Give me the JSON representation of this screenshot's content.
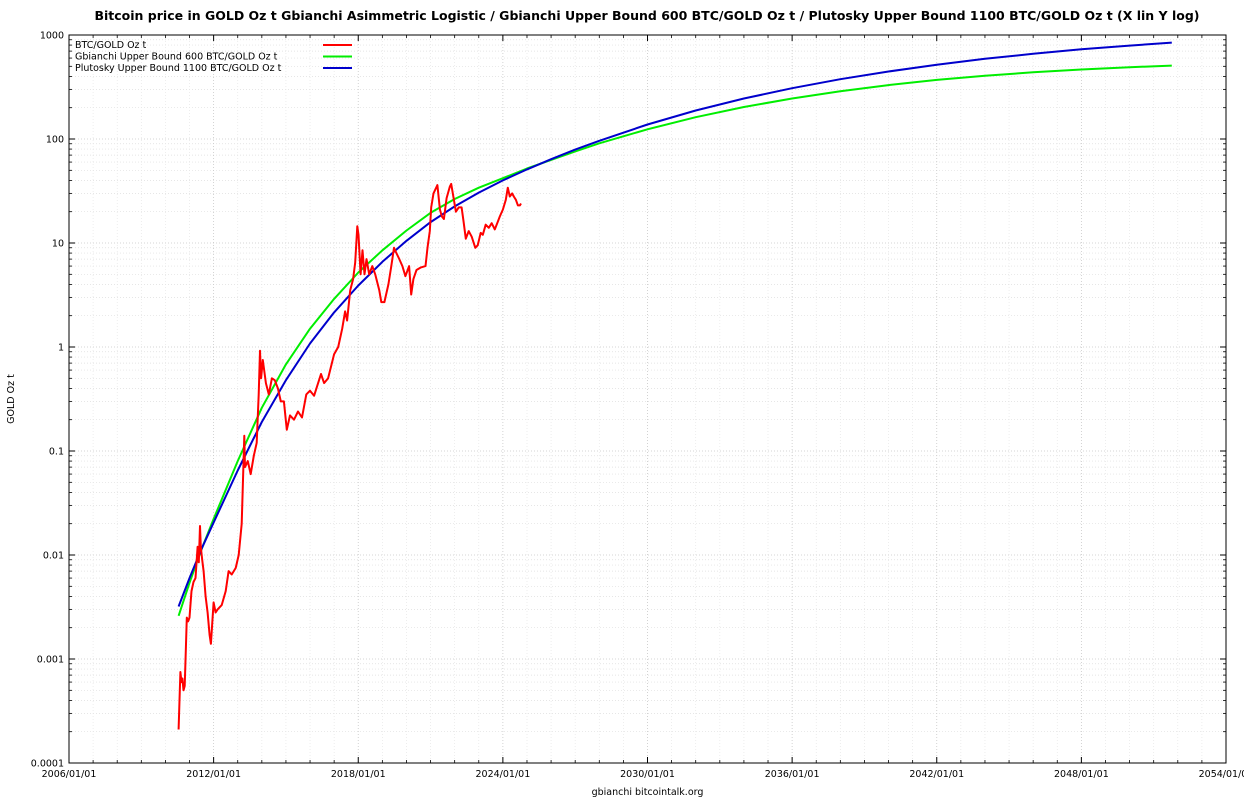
{
  "chart_data": {
    "type": "line",
    "title": "Bitcoin price in GOLD Oz t Gbianchi Asimmetric Logistic / Gbianchi Upper Bound 600  BTC/GOLD Oz t / Plutosky Upper Bound 1100  BTC/GOLD Oz t  (X lin Y log)",
    "xlabel": "gbianchi bitcointalk.org",
    "ylabel": "GOLD Oz t",
    "x_scale": "date",
    "y_scale": "log",
    "xlim": [
      "2006-01-01",
      "2054-01-01"
    ],
    "ylim": [
      0.0001,
      1000
    ],
    "x_ticks": [
      "2006/01/01",
      "2012/01/01",
      "2018/01/01",
      "2024/01/01",
      "2030/01/01",
      "2036/01/01",
      "2042/01/01",
      "2048/01/01",
      "2054/01/01"
    ],
    "y_ticks": [
      "0.0001",
      "0.001",
      "0.01",
      "0.1",
      "1",
      "10",
      "100",
      "1000"
    ],
    "grid": true,
    "legend_position": "top-left",
    "series": [
      {
        "name": "BTC/GOLD Oz t",
        "color": "#ff0000",
        "points": [
          [
            "2010-07-18",
            0.00021
          ],
          [
            "2010-08-01",
            0.0004
          ],
          [
            "2010-08-15",
            0.00075
          ],
          [
            "2010-09-01",
            0.0006
          ],
          [
            "2010-09-15",
            0.00065
          ],
          [
            "2010-10-01",
            0.0005
          ],
          [
            "2010-10-20",
            0.00055
          ],
          [
            "2010-11-05",
            0.0012
          ],
          [
            "2010-11-20",
            0.0025
          ],
          [
            "2010-12-10",
            0.0023
          ],
          [
            "2011-01-01",
            0.0025
          ],
          [
            "2011-02-01",
            0.0045
          ],
          [
            "2011-03-01",
            0.0055
          ],
          [
            "2011-04-01",
            0.006
          ],
          [
            "2011-05-01",
            0.012
          ],
          [
            "2011-05-20",
            0.0085
          ],
          [
            "2011-06-08",
            0.019
          ],
          [
            "2011-06-20",
            0.012
          ],
          [
            "2011-07-10",
            0.009
          ],
          [
            "2011-08-01",
            0.007
          ],
          [
            "2011-09-01",
            0.004
          ],
          [
            "2011-10-01",
            0.0028
          ],
          [
            "2011-11-01",
            0.0017
          ],
          [
            "2011-11-20",
            0.0014
          ],
          [
            "2012-01-01",
            0.0035
          ],
          [
            "2012-02-01",
            0.0028
          ],
          [
            "2012-03-01",
            0.003
          ],
          [
            "2012-05-01",
            0.0033
          ],
          [
            "2012-07-01",
            0.0045
          ],
          [
            "2012-08-15",
            0.007
          ],
          [
            "2012-10-01",
            0.0065
          ],
          [
            "2012-12-01",
            0.0075
          ],
          [
            "2013-01-15",
            0.01
          ],
          [
            "2013-03-01",
            0.02
          ],
          [
            "2013-04-09",
            0.14
          ],
          [
            "2013-04-20",
            0.07
          ],
          [
            "2013-06-01",
            0.08
          ],
          [
            "2013-07-15",
            0.06
          ],
          [
            "2013-09-01",
            0.09
          ],
          [
            "2013-10-15",
            0.12
          ],
          [
            "2013-11-15",
            0.35
          ],
          [
            "2013-12-04",
            0.92
          ],
          [
            "2013-12-20",
            0.5
          ],
          [
            "2014-01-15",
            0.75
          ],
          [
            "2014-03-01",
            0.45
          ],
          [
            "2014-04-15",
            0.35
          ],
          [
            "2014-06-01",
            0.5
          ],
          [
            "2014-07-15",
            0.48
          ],
          [
            "2014-09-01",
            0.4
          ],
          [
            "2014-10-15",
            0.3
          ],
          [
            "2014-12-01",
            0.3
          ],
          [
            "2015-01-14",
            0.16
          ],
          [
            "2015-03-01",
            0.22
          ],
          [
            "2015-05-01",
            0.2
          ],
          [
            "2015-07-01",
            0.24
          ],
          [
            "2015-09-01",
            0.21
          ],
          [
            "2015-11-05",
            0.35
          ],
          [
            "2016-01-01",
            0.38
          ],
          [
            "2016-03-01",
            0.34
          ],
          [
            "2016-06-15",
            0.55
          ],
          [
            "2016-08-01",
            0.45
          ],
          [
            "2016-10-01",
            0.5
          ],
          [
            "2017-01-01",
            0.85
          ],
          [
            "2017-03-01",
            1.0
          ],
          [
            "2017-05-01",
            1.5
          ],
          [
            "2017-06-15",
            2.2
          ],
          [
            "2017-07-15",
            1.8
          ],
          [
            "2017-09-01",
            3.5
          ],
          [
            "2017-10-15",
            4.5
          ],
          [
            "2017-11-15",
            6.5
          ],
          [
            "2017-12-17",
            14.5
          ],
          [
            "2018-01-05",
            12.0
          ],
          [
            "2018-02-06",
            5.0
          ],
          [
            "2018-03-05",
            8.5
          ],
          [
            "2018-04-05",
            5.0
          ],
          [
            "2018-05-05",
            7.0
          ],
          [
            "2018-06-15",
            5.0
          ],
          [
            "2018-08-01",
            6.0
          ],
          [
            "2018-09-15",
            5.0
          ],
          [
            "2018-11-15",
            3.5
          ],
          [
            "2018-12-15",
            2.7
          ],
          [
            "2019-02-01",
            2.7
          ],
          [
            "2019-04-01",
            4.0
          ],
          [
            "2019-05-15",
            6.0
          ],
          [
            "2019-06-26",
            9.0
          ],
          [
            "2019-08-01",
            8.0
          ],
          [
            "2019-09-15",
            7.0
          ],
          [
            "2019-11-01",
            6.0
          ],
          [
            "2019-12-15",
            4.8
          ],
          [
            "2020-02-10",
            6.0
          ],
          [
            "2020-03-12",
            3.2
          ],
          [
            "2020-04-15",
            4.5
          ],
          [
            "2020-06-01",
            5.5
          ],
          [
            "2020-08-01",
            5.8
          ],
          [
            "2020-10-15",
            6.0
          ],
          [
            "2020-11-15",
            9.0
          ],
          [
            "2020-12-20",
            13.0
          ],
          [
            "2021-01-10",
            22.0
          ],
          [
            "2021-02-15",
            30.0
          ],
          [
            "2021-04-14",
            36.0
          ],
          [
            "2021-05-20",
            21.0
          ],
          [
            "2021-06-20",
            18.0
          ],
          [
            "2021-07-20",
            17.0
          ],
          [
            "2021-09-01",
            27.0
          ],
          [
            "2021-10-20",
            35.0
          ],
          [
            "2021-11-10",
            37.0
          ],
          [
            "2021-12-15",
            27.0
          ],
          [
            "2022-01-20",
            20.0
          ],
          [
            "2022-03-01",
            22.0
          ],
          [
            "2022-04-15",
            22.0
          ],
          [
            "2022-05-15",
            16.0
          ],
          [
            "2022-06-18",
            11.0
          ],
          [
            "2022-08-01",
            13.0
          ],
          [
            "2022-09-15",
            11.5
          ],
          [
            "2022-11-10",
            9.0
          ],
          [
            "2022-12-15",
            9.5
          ],
          [
            "2023-01-30",
            12.5
          ],
          [
            "2023-03-01",
            12.0
          ],
          [
            "2023-04-15",
            15.0
          ],
          [
            "2023-06-01",
            14.0
          ],
          [
            "2023-07-15",
            15.5
          ],
          [
            "2023-09-01",
            13.5
          ],
          [
            "2023-10-15",
            16.0
          ],
          [
            "2023-11-15",
            18.0
          ],
          [
            "2024-01-01",
            21.0
          ],
          [
            "2024-02-15",
            26.0
          ],
          [
            "2024-03-14",
            34.0
          ],
          [
            "2024-04-15",
            28.0
          ],
          [
            "2024-05-20",
            30.0
          ],
          [
            "2024-06-15",
            28.0
          ],
          [
            "2024-07-15",
            26.0
          ],
          [
            "2024-08-15",
            23.0
          ],
          [
            "2024-09-15",
            23.0
          ],
          [
            "2024-10-01",
            24.0
          ]
        ]
      },
      {
        "name": "Gbianchi Upper Bound 600  BTC/GOLD Oz t",
        "color": "#00ee00",
        "points": [
          [
            "2010-07-18",
            0.0026
          ],
          [
            "2011-01-01",
            0.0054
          ],
          [
            "2011-07-01",
            0.0114
          ],
          [
            "2012-01-01",
            0.0222
          ],
          [
            "2013-01-01",
            0.08
          ],
          [
            "2014-01-01",
            0.26
          ],
          [
            "2015-01-01",
            0.68
          ],
          [
            "2016-01-01",
            1.5
          ],
          [
            "2017-01-01",
            2.9
          ],
          [
            "2018-01-01",
            5.2
          ],
          [
            "2019-01-01",
            8.5
          ],
          [
            "2020-01-01",
            13.2
          ],
          [
            "2021-01-01",
            19.5
          ],
          [
            "2022-01-01",
            26.5
          ],
          [
            "2023-01-01",
            34.0
          ],
          [
            "2024-01-01",
            42.0
          ],
          [
            "2025-01-01",
            52.0
          ],
          [
            "2026-01-01",
            63.0
          ],
          [
            "2027-01-01",
            76.0
          ],
          [
            "2028-01-01",
            91.0
          ],
          [
            "2030-01-01",
            124.0
          ],
          [
            "2032-01-01",
            162.0
          ],
          [
            "2034-01-01",
            203.0
          ],
          [
            "2036-01-01",
            245.0
          ],
          [
            "2038-01-01",
            288.0
          ],
          [
            "2040-01-01",
            330.0
          ],
          [
            "2042-01-01",
            370.0
          ],
          [
            "2044-01-01",
            406.0
          ],
          [
            "2046-01-01",
            438.0
          ],
          [
            "2048-01-01",
            466.0
          ],
          [
            "2050-01-01",
            490.0
          ],
          [
            "2051-10-01",
            508.0
          ]
        ]
      },
      {
        "name": "Plutosky Upper Bound 1100  BTC/GOLD Oz t",
        "color": "#0000cc",
        "points": [
          [
            "2010-07-18",
            0.0032
          ],
          [
            "2011-01-01",
            0.006
          ],
          [
            "2011-07-01",
            0.0115
          ],
          [
            "2012-01-01",
            0.0205
          ],
          [
            "2013-01-01",
            0.065
          ],
          [
            "2014-01-01",
            0.19
          ],
          [
            "2015-01-01",
            0.48
          ],
          [
            "2016-01-01",
            1.08
          ],
          [
            "2017-01-01",
            2.15
          ],
          [
            "2018-01-01",
            3.9
          ],
          [
            "2019-01-01",
            6.6
          ],
          [
            "2020-01-01",
            10.5
          ],
          [
            "2021-01-01",
            15.9
          ],
          [
            "2022-01-01",
            22.5
          ],
          [
            "2023-01-01",
            30.5
          ],
          [
            "2024-01-01",
            40.0
          ],
          [
            "2025-01-01",
            51.0
          ],
          [
            "2026-01-01",
            64.0
          ],
          [
            "2027-01-01",
            79.0
          ],
          [
            "2028-01-01",
            96.0
          ],
          [
            "2030-01-01",
            138.0
          ],
          [
            "2032-01-01",
            188.0
          ],
          [
            "2034-01-01",
            245.0
          ],
          [
            "2036-01-01",
            308.0
          ],
          [
            "2038-01-01",
            376.0
          ],
          [
            "2040-01-01",
            446.0
          ],
          [
            "2042-01-01",
            518.0
          ],
          [
            "2044-01-01",
            590.0
          ],
          [
            "2046-01-01",
            660.0
          ],
          [
            "2048-01-01",
            728.0
          ],
          [
            "2050-01-01",
            790.0
          ],
          [
            "2051-10-01",
            845.0
          ]
        ]
      }
    ]
  }
}
